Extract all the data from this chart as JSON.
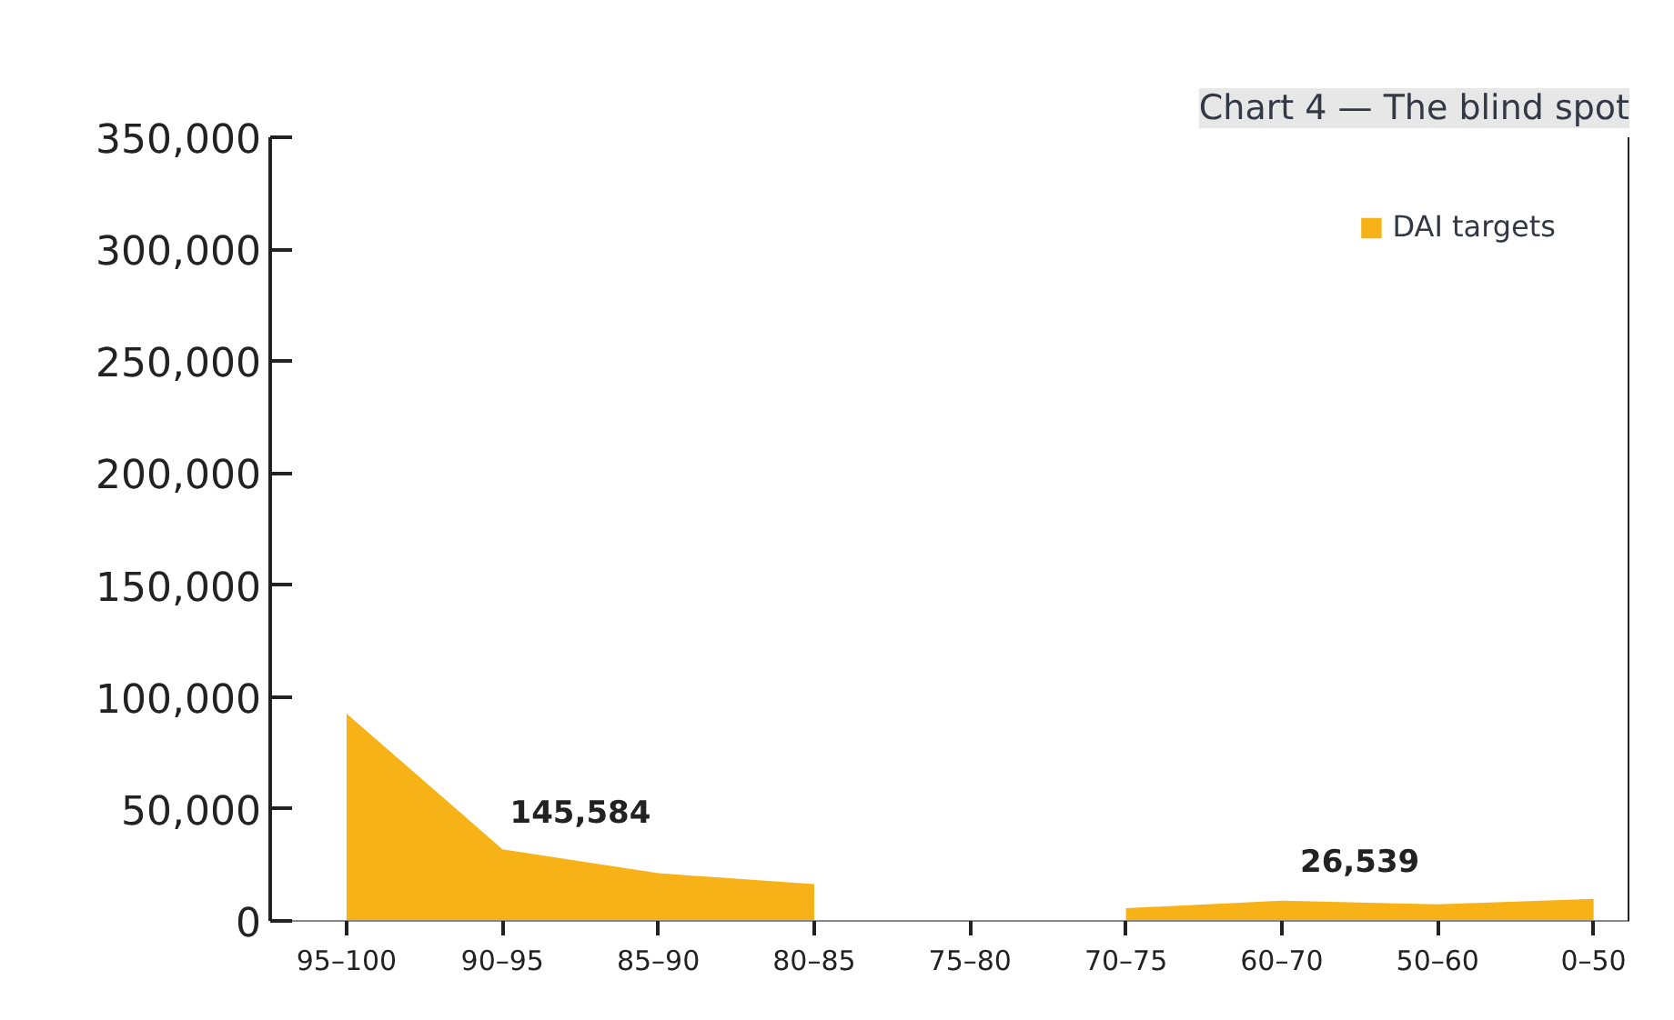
{
  "chart_data": {
    "type": "area",
    "title": "Chart 4 — The blind spot",
    "categories": [
      "95–100",
      "90–95",
      "85–90",
      "80–85",
      "75–80",
      "70–75",
      "60–70",
      "50–60",
      "0–50"
    ],
    "series": [
      {
        "name": "DAI targets",
        "color": "#f7b217",
        "values": [
          92600,
          32000,
          21300,
          16400,
          null,
          5700,
          9000,
          7400,
          9800
        ]
      }
    ],
    "ylim": [
      0,
      350000
    ],
    "yticks": [
      {
        "value": 0,
        "label": "0"
      },
      {
        "value": 50000,
        "label": "50,000"
      },
      {
        "value": 100000,
        "label": "100,000"
      },
      {
        "value": 150000,
        "label": "150,000"
      },
      {
        "value": 200000,
        "label": "200,000"
      },
      {
        "value": 250000,
        "label": "250,000"
      },
      {
        "value": 300000,
        "label": "300,000"
      },
      {
        "value": 350000,
        "label": "350,000"
      }
    ],
    "annotations": [
      "145,584",
      "26,539"
    ],
    "grid": false,
    "legend": "top right"
  }
}
